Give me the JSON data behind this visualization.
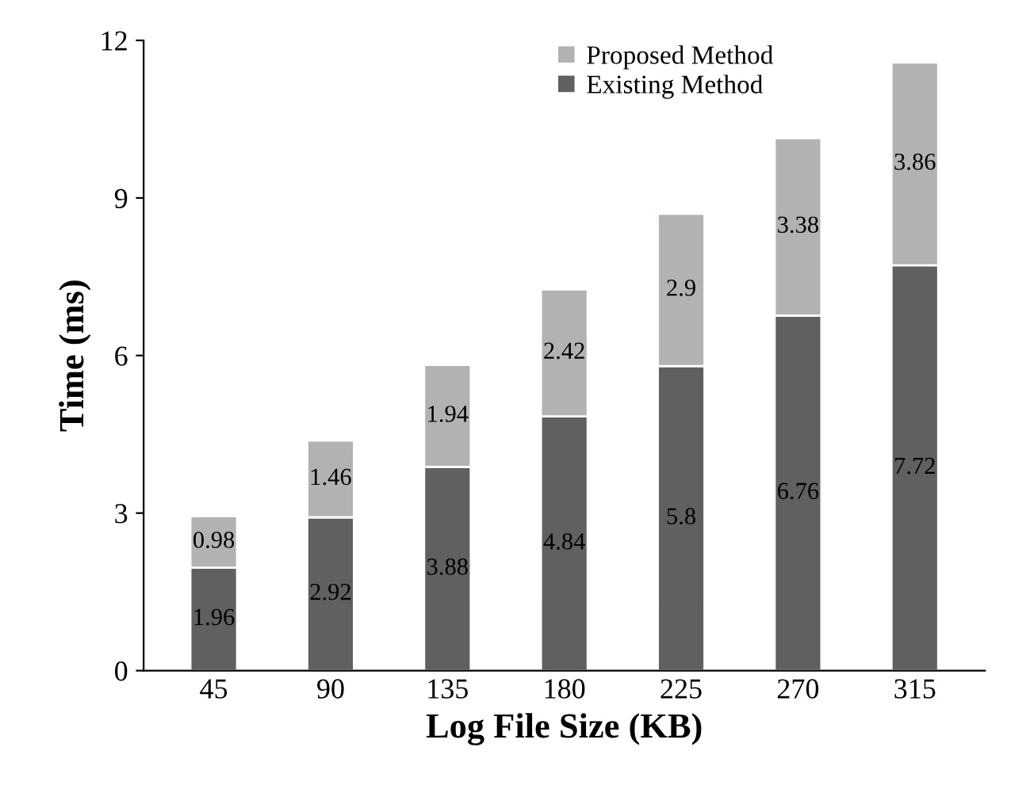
{
  "chart_data": {
    "type": "bar",
    "stacked": true,
    "xlabel": "Log File Size (KB)",
    "ylabel": "Time (ms)",
    "categories": [
      "45",
      "90",
      "135",
      "180",
      "225",
      "270",
      "315"
    ],
    "series": [
      {
        "name": "Existing Method",
        "color": "#606060",
        "values": [
          1.96,
          2.92,
          3.88,
          4.84,
          5.8,
          6.76,
          7.72
        ]
      },
      {
        "name": "Proposed Method",
        "color": "#b2b2b2",
        "values": [
          0.98,
          1.46,
          1.94,
          2.42,
          2.9,
          3.38,
          3.86
        ]
      }
    ],
    "ylim": [
      0,
      12
    ],
    "yticks": [
      0,
      3,
      6,
      9,
      12
    ],
    "grid": false,
    "legend": "top",
    "data_labels": true
  }
}
